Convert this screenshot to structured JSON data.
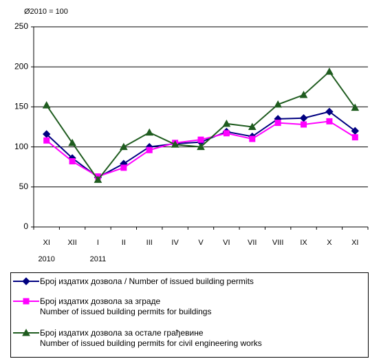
{
  "chart_data": {
    "type": "line",
    "title": "Ø2010 = 100",
    "categories": [
      "XI",
      "XII",
      "I",
      "II",
      "III",
      "IV",
      "V",
      "VI",
      "VII",
      "VIII",
      "IX",
      "X",
      "XI"
    ],
    "category_years": [
      "2010",
      null,
      "2011",
      null,
      null,
      null,
      null,
      null,
      null,
      null,
      null,
      null,
      null
    ],
    "series": [
      {
        "name": "Број издатих дозвола / Number of issued building permits",
        "color": "#000080",
        "marker": "diamond",
        "values": [
          116,
          86,
          62,
          79,
          100,
          104,
          106,
          119,
          113,
          135,
          136,
          144,
          120
        ]
      },
      {
        "name": "Број издатих дозвола за зграде\nNumber of issued building permits for buildings",
        "color": "#ff00ff",
        "marker": "square",
        "values": [
          108,
          82,
          63,
          74,
          96,
          105,
          109,
          117,
          110,
          130,
          128,
          132,
          112
        ]
      },
      {
        "name": "Број издатих дозвола за остале грађевине\nNumber of issued building permits for civil engineering works",
        "color": "#1f5c1f",
        "marker": "triangle",
        "values": [
          152,
          105,
          59,
          100,
          118,
          103,
          100,
          129,
          125,
          153,
          165,
          194,
          149
        ]
      }
    ],
    "ylim": [
      0,
      250
    ],
    "yticks": [
      0,
      50,
      100,
      150,
      200,
      250
    ],
    "grid": true
  }
}
